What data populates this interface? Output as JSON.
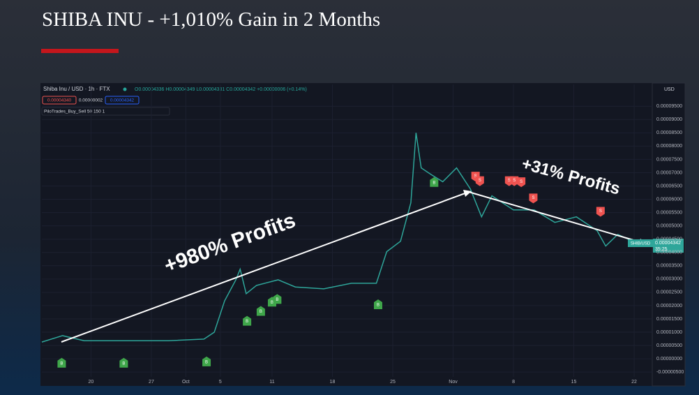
{
  "slide_title": "SHIBA INU - +1,010% Gain in 2 Months",
  "chart_data": {
    "type": "line",
    "symbol": "Shiba Inu / USD · 1h · FTX",
    "ohlc": "O0.00004336 H0.00004349 L0.00004331 C0.00004342 +0.00000006 (+0.14%)",
    "bid": "0.00004340",
    "spread": "0.00000002",
    "ask": "0.00004342",
    "indicator": "PiloTrades_Buy_Sell 50 150 1",
    "currency": "USD",
    "price_tag": {
      "symbol": "SHIB/USD",
      "price": "0.00004342",
      "countdown": "35:25"
    },
    "annotations": [
      "+980% Profits",
      "+31% Profits"
    ],
    "x": [
      14.3,
      16.7,
      19.2,
      24.1,
      29,
      33.1,
      34.3,
      35.5,
      36.8,
      37.3,
      38,
      39.2,
      41.7,
      43.7,
      47,
      50.2,
      53.1,
      54.3,
      55.9,
      57.1,
      57.7,
      58.3,
      59.5,
      60.8,
      62.4,
      64,
      65.3,
      66.5,
      69,
      71.4,
      73.8,
      76.3,
      78.7,
      79.7,
      81.1,
      83.2
    ],
    "series": [
      {
        "name": "SHIB/USD",
        "color": "#2ea69a",
        "values": [
          6.3e-06,
          8.7e-06,
          6.8e-06,
          6.8e-06,
          6.8e-06,
          7.4e-06,
          1e-05,
          2.18e-05,
          2.97e-05,
          3.37e-05,
          2.45e-05,
          2.76e-05,
          2.97e-05,
          2.7e-05,
          2.63e-05,
          2.84e-05,
          2.84e-05,
          4.03e-05,
          4.42e-05,
          5.87e-05,
          8.5e-05,
          7.18e-05,
          6.92e-05,
          6.66e-05,
          7.18e-05,
          6.39e-05,
          5.34e-05,
          6.13e-05,
          5.6e-05,
          5.6e-05,
          5.13e-05,
          5.34e-05,
          4.82e-05,
          4.24e-05,
          4.68e-05,
          4.37e-05
        ]
      }
    ],
    "buy_signals": {
      "label": "B",
      "color": "#3fa64a",
      "x": [
        16.6,
        23.8,
        33.4,
        38.1,
        39.7,
        41.0,
        41.6,
        53.3,
        59.8
      ],
      "y": [
        -1.5e-06,
        -1.5e-06,
        -1e-06,
        1.43e-05,
        1.8e-05,
        2.15e-05,
        2.25e-05,
        2.05e-05,
        6.65e-05
      ]
    },
    "sell_signals": {
      "label": "S",
      "color": "#ef5350",
      "x": [
        64.6,
        65.1,
        68.5,
        69.1,
        69.9,
        71.3,
        79.1
      ],
      "y": [
        6.85e-05,
        6.68e-05,
        6.68e-05,
        6.68e-05,
        6.64e-05,
        6.03e-05,
        5.53e-05
      ]
    },
    "xlim": [
      14.3,
      85.1
    ],
    "xticks": [
      20,
      27,
      {
        "value": 31,
        "label": "Oct"
      },
      {
        "value": 35,
        "label": "5"
      },
      {
        "value": 41,
        "label": "11"
      },
      {
        "value": 48,
        "label": "18"
      },
      {
        "value": 55,
        "label": "25"
      },
      {
        "value": 62,
        "label": "Nov"
      },
      {
        "value": 69,
        "label": "8"
      },
      {
        "value": 76,
        "label": "15"
      },
      {
        "value": 83,
        "label": "22"
      }
    ],
    "ylim": [
      -6.8e-06,
      0.0001032
    ],
    "yticks": [
      {
        "value": 9.5e-05,
        "label": "0.00009500"
      },
      {
        "value": 9e-05,
        "label": "0.00009000"
      },
      {
        "value": 8.5e-05,
        "label": "0.00008500"
      },
      {
        "value": 8e-05,
        "label": "0.00008000"
      },
      {
        "value": 7.5e-05,
        "label": "0.00007500"
      },
      {
        "value": 7e-05,
        "label": "0.00007000"
      },
      {
        "value": 6.5e-05,
        "label": "0.00006500"
      },
      {
        "value": 6e-05,
        "label": "0.00006000"
      },
      {
        "value": 5.5e-05,
        "label": "0.00005500"
      },
      {
        "value": 5e-05,
        "label": "0.00005000"
      },
      {
        "value": 4.5e-05,
        "label": "0.00004500"
      },
      {
        "value": 4e-05,
        "label": "0.00004000"
      },
      {
        "value": 3.5e-05,
        "label": "0.00003500"
      },
      {
        "value": 3e-05,
        "label": "0.00003000"
      },
      {
        "value": 2.5e-05,
        "label": "0.00002500"
      },
      {
        "value": 2e-05,
        "label": "0.00002000"
      },
      {
        "value": 1.5e-05,
        "label": "0.00001500"
      },
      {
        "value": 1e-05,
        "label": "0.00001000"
      },
      {
        "value": 5e-06,
        "label": "0.00000500"
      },
      {
        "value": 0,
        "label": "0.00000000"
      },
      {
        "value": -5e-06,
        "label": "-0.00000500"
      }
    ],
    "grid": true
  }
}
